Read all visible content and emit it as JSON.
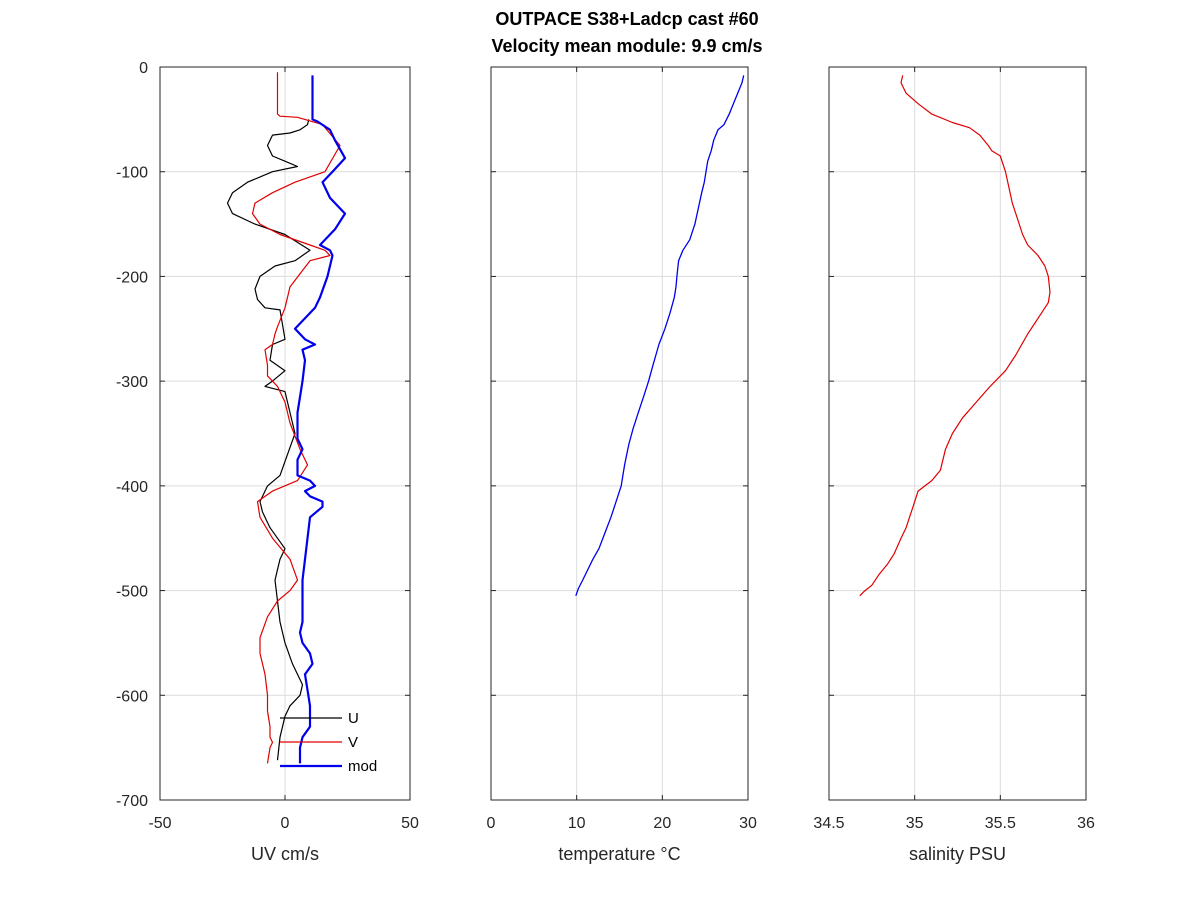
{
  "title_line1": "OUTPACE S38+Ladcp cast #60",
  "title_line2": "Velocity mean module:  9.9 cm/s",
  "chart_data": [
    {
      "type": "line",
      "xlabel": "UV cm/s",
      "ylabel": "",
      "xlim": [
        -50,
        50
      ],
      "ylim": [
        -700,
        0
      ],
      "xticks": [
        "-50",
        "0",
        "50"
      ],
      "yticks": [
        "0",
        "-100",
        "-200",
        "-300",
        "-400",
        "-500",
        "-600",
        "-700"
      ],
      "grid": true,
      "legend": "bottom-right",
      "series": [
        {
          "name": "U",
          "color": "#000000",
          "x": [
            9.5,
            9,
            6,
            2,
            -5,
            -7,
            -5,
            0,
            5,
            -5,
            -15,
            -21,
            -23,
            -21,
            -12,
            0,
            10,
            4,
            -4,
            -10,
            -12,
            -11,
            -8,
            -2,
            0,
            -5,
            -6,
            0,
            -5,
            -8,
            0,
            2,
            4,
            1,
            -2,
            -7,
            -10,
            -9,
            -6,
            -3,
            0,
            -2,
            -4,
            -3,
            -2,
            0,
            3,
            7,
            6,
            2,
            0,
            -2,
            -3
          ],
          "y": [
            -50,
            -55,
            -60,
            -63,
            -65,
            -75,
            -85,
            -90,
            -95,
            -100,
            -110,
            -120,
            -130,
            -140,
            -150,
            -160,
            -175,
            -185,
            -190,
            -200,
            -212,
            -222,
            -230,
            -232,
            -260,
            -265,
            -280,
            -290,
            -300,
            -305,
            -310,
            -330,
            -350,
            -370,
            -390,
            -400,
            -415,
            -425,
            -440,
            -450,
            -460,
            -470,
            -490,
            -510,
            -530,
            -550,
            -570,
            -590,
            -600,
            -610,
            -620,
            -640,
            -662
          ]
        },
        {
          "name": "V",
          "color": "#e00000",
          "x": [
            -3,
            -3,
            -3,
            -2,
            5,
            15,
            22,
            16,
            4,
            -5,
            -12,
            -13,
            -10,
            -2,
            10,
            16,
            18,
            10,
            2,
            0,
            -3,
            -4,
            -5,
            -8,
            -7,
            -7,
            -3,
            0,
            2,
            6,
            9,
            5,
            -5,
            -11,
            -10,
            -5,
            2,
            5,
            2,
            -3,
            -7,
            -10,
            -10,
            -8,
            -7,
            -7,
            -6,
            -6,
            -5,
            -6,
            -7
          ],
          "y": [
            -5,
            -40,
            -45,
            -47,
            -48,
            -55,
            -75,
            -100,
            -110,
            -120,
            -130,
            -140,
            -150,
            -160,
            -170,
            -175,
            -180,
            -185,
            -210,
            -230,
            -248,
            -255,
            -265,
            -270,
            -285,
            -295,
            -305,
            -320,
            -340,
            -365,
            -380,
            -395,
            -405,
            -415,
            -430,
            -450,
            -470,
            -490,
            -500,
            -510,
            -525,
            -545,
            -560,
            -580,
            -600,
            -615,
            -630,
            -640,
            -645,
            -650,
            -665
          ]
        },
        {
          "name": "mod",
          "color": "#0000ee",
          "x": [
            11,
            11,
            11,
            13,
            18,
            20,
            24,
            19,
            15,
            18,
            24,
            20,
            16,
            14,
            18,
            19,
            17,
            14,
            12,
            8,
            4,
            8,
            12,
            7,
            8,
            7,
            6,
            5,
            5,
            5,
            7,
            5,
            5,
            10,
            12,
            8,
            10,
            15,
            15,
            10,
            9,
            8,
            7,
            7,
            7,
            6,
            7,
            10,
            11,
            8,
            9,
            10,
            10,
            7,
            6,
            6
          ],
          "y": [
            -8,
            -45,
            -50,
            -52,
            -60,
            -70,
            -87,
            -100,
            -110,
            -125,
            -140,
            -155,
            -165,
            -170,
            -175,
            -180,
            -200,
            -220,
            -230,
            -240,
            -250,
            -260,
            -265,
            -270,
            -280,
            -300,
            -315,
            -330,
            -345,
            -355,
            -365,
            -375,
            -390,
            -395,
            -400,
            -405,
            -410,
            -415,
            -420,
            -430,
            -450,
            -470,
            -490,
            -510,
            -530,
            -540,
            -550,
            -560,
            -570,
            -580,
            -595,
            -610,
            -630,
            -640,
            -650,
            -665
          ]
        }
      ]
    },
    {
      "type": "line",
      "xlabel": "temperature °C",
      "ylabel": "",
      "xlim": [
        0,
        30
      ],
      "ylim": [
        -700,
        0
      ],
      "xticks": [
        "0",
        "10",
        "20",
        "30"
      ],
      "yticks": [],
      "grid": true,
      "series": [
        {
          "color": "#0000ee",
          "x": [
            29.5,
            29.3,
            28.8,
            28.3,
            27.8,
            27.2,
            26.5,
            26.0,
            25.7,
            25.3,
            25.1,
            24.9,
            24.6,
            24.2,
            23.8,
            23.2,
            22.4,
            21.9,
            21.7,
            21.6,
            21.4,
            20.9,
            20.3,
            19.6,
            18.9,
            18.4,
            17.8,
            17.2,
            16.6,
            16.1,
            15.6,
            15.2,
            14.6,
            14.0,
            13.3,
            12.6,
            11.9,
            11.3,
            10.7,
            10.2,
            9.9
          ],
          "y": [
            -8,
            -15,
            -25,
            -35,
            -45,
            -55,
            -60,
            -70,
            -80,
            -90,
            -100,
            -110,
            -120,
            -135,
            -150,
            -165,
            -175,
            -185,
            -200,
            -210,
            -220,
            -235,
            -250,
            -265,
            -285,
            -300,
            -315,
            -330,
            -345,
            -360,
            -380,
            -400,
            -415,
            -430,
            -445,
            -460,
            -470,
            -480,
            -490,
            -498,
            -505
          ]
        }
      ]
    },
    {
      "type": "line",
      "xlabel": "salinity PSU",
      "ylabel": "",
      "xlim": [
        34.5,
        36
      ],
      "ylim": [
        -700,
        0
      ],
      "xticks": [
        "34.5",
        "35",
        "35.5",
        "36"
      ],
      "yticks": [],
      "grid": true,
      "series": [
        {
          "color": "#e00000",
          "x": [
            34.93,
            34.92,
            34.95,
            35.02,
            35.1,
            35.22,
            35.32,
            35.38,
            35.43,
            35.45,
            35.5,
            35.53,
            35.55,
            35.57,
            35.6,
            35.63,
            35.66,
            35.72,
            35.76,
            35.78,
            35.79,
            35.78,
            35.74,
            35.66,
            35.59,
            35.53,
            35.44,
            35.36,
            35.28,
            35.22,
            35.18,
            35.15,
            35.1,
            35.06,
            35.02,
            34.99,
            34.97,
            34.95,
            34.92,
            34.88,
            34.84,
            34.79,
            34.75,
            34.71,
            34.68
          ],
          "y": [
            -8,
            -15,
            -25,
            -35,
            -45,
            -53,
            -58,
            -65,
            -75,
            -80,
            -85,
            -100,
            -115,
            -130,
            -145,
            -160,
            -170,
            -180,
            -190,
            -200,
            -215,
            -225,
            -235,
            -255,
            -275,
            -290,
            -305,
            -320,
            -335,
            -350,
            -365,
            -385,
            -395,
            -400,
            -405,
            -420,
            -430,
            -440,
            -450,
            -465,
            -475,
            -485,
            -495,
            -500,
            -505
          ]
        }
      ]
    }
  ]
}
